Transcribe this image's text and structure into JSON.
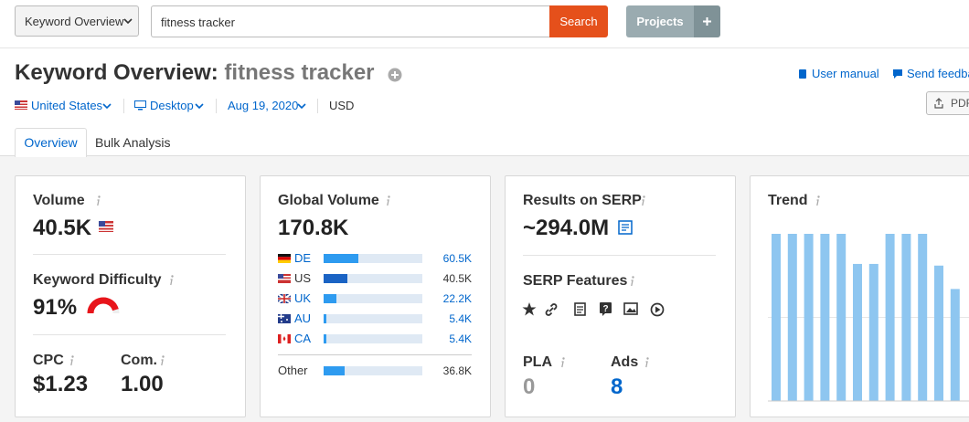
{
  "toolbar": {
    "mode": "Keyword Overview",
    "query": "fitness tracker",
    "search": "Search",
    "projects": "Projects"
  },
  "header": {
    "title": "Keyword Overview:",
    "keyword": "fitness tracker",
    "user_manual": "User manual",
    "feedback": "Send feedback",
    "pdf": "PDF"
  },
  "filters": {
    "country": "United States",
    "device": "Desktop",
    "date": "Aug 19, 2020",
    "currency": "USD"
  },
  "tabs": [
    "Overview",
    "Bulk Analysis"
  ],
  "volume": {
    "label": "Volume",
    "value": "40.5K"
  },
  "difficulty": {
    "label": "Keyword Difficulty",
    "value": 91,
    "value_label": "91%"
  },
  "cpc": {
    "label": "CPC",
    "value": "$1.23"
  },
  "competition": {
    "label": "Com.",
    "value": "1.00"
  },
  "global_volume": {
    "label": "Global Volume",
    "value": 170800,
    "value_label": "170.8K",
    "rows": [
      {
        "country": "DE",
        "volume": 60500,
        "volume_label": "60.5K",
        "color": "#2e9bf0"
      },
      {
        "country": "US",
        "volume": 40500,
        "volume_label": "40.5K",
        "color": "#1a63c4"
      },
      {
        "country": "UK",
        "volume": 22200,
        "volume_label": "22.2K",
        "color": "#2e9bf0"
      },
      {
        "country": "AU",
        "volume": 5400,
        "volume_label": "5.4K",
        "color": "#2e9bf0"
      },
      {
        "country": "CA",
        "volume": 5400,
        "volume_label": "5.4K",
        "color": "#2e9bf0"
      }
    ],
    "other": {
      "country": "Other",
      "volume": 36800,
      "volume_label": "36.8K",
      "color": "#2e9bf0"
    }
  },
  "serp": {
    "label": "Results on SERP",
    "value": "~294.0M",
    "features_label": "SERP Features",
    "pla_label": "PLA",
    "pla": 0,
    "ads_label": "Ads",
    "ads": 8
  },
  "trend": {
    "label": "Trend",
    "values": [
      100,
      100,
      100,
      100,
      100,
      82,
      82,
      100,
      100,
      100,
      81,
      67
    ],
    "ylim": [
      0,
      100
    ],
    "color": "#8ec6f0"
  }
}
